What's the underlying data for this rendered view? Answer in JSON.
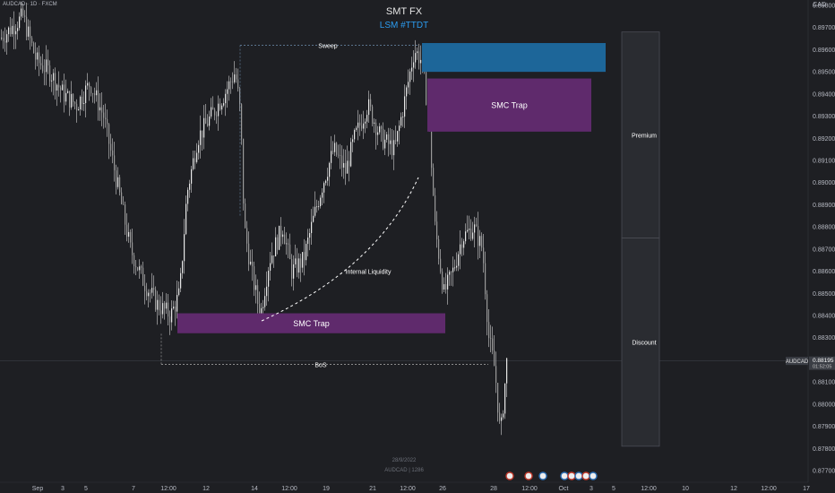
{
  "header": {
    "title": "SMT FX",
    "subtitle": "LSM #TTDT",
    "symbol_tag": "AUDCAD · 1D · FXCM",
    "unit": "CAD"
  },
  "watermark": {
    "date": "28/9/2022",
    "symbol": "AUDCAD | 1286"
  },
  "price_tag": {
    "symbol": "AUDCAD",
    "value": "0.88195",
    "countdown": "01:52:05"
  },
  "chart_data": {
    "type": "candlestick",
    "title": "",
    "ylim": [
      0.8768,
      0.8982
    ],
    "y_ticks": [
      "0.89800",
      "0.89700",
      "0.89600",
      "0.89500",
      "0.89400",
      "0.89300",
      "0.89200",
      "0.89100",
      "0.89000",
      "0.88900",
      "0.88800",
      "0.88700",
      "0.88600",
      "0.88500",
      "0.88400",
      "0.88300",
      "0.88200",
      "0.88100",
      "0.88000",
      "0.87900",
      "0.87800",
      "0.87700"
    ],
    "x_ticks": [
      "Sep",
      "3",
      "5",
      "7",
      "12:00",
      "12",
      "14",
      "12:00",
      "19",
      "21",
      "12:00",
      "26",
      "28",
      "12:00",
      "Oct",
      "3",
      "5",
      "12:00",
      "10",
      "12",
      "12:00",
      "17"
    ],
    "price_path": [
      [
        0,
        0.8965
      ],
      [
        25,
        0.8975
      ],
      [
        40,
        0.8955
      ],
      [
        55,
        0.895
      ],
      [
        70,
        0.894
      ],
      [
        85,
        0.8935
      ],
      [
        100,
        0.8945
      ],
      [
        115,
        0.893
      ],
      [
        130,
        0.89
      ],
      [
        145,
        0.887
      ],
      [
        160,
        0.8855
      ],
      [
        175,
        0.8845
      ],
      [
        190,
        0.884
      ],
      [
        200,
        0.885
      ],
      [
        208,
        0.8895
      ],
      [
        220,
        0.892
      ],
      [
        235,
        0.893
      ],
      [
        250,
        0.894
      ],
      [
        262,
        0.895
      ],
      [
        268,
        0.893
      ],
      [
        272,
        0.888
      ],
      [
        280,
        0.886
      ],
      [
        290,
        0.884
      ],
      [
        300,
        0.8865
      ],
      [
        315,
        0.888
      ],
      [
        325,
        0.886
      ],
      [
        338,
        0.8865
      ],
      [
        350,
        0.8885
      ],
      [
        360,
        0.89
      ],
      [
        372,
        0.8915
      ],
      [
        385,
        0.8905
      ],
      [
        395,
        0.892
      ],
      [
        410,
        0.8935
      ],
      [
        425,
        0.892
      ],
      [
        440,
        0.8915
      ],
      [
        450,
        0.8935
      ],
      [
        462,
        0.896
      ],
      [
        470,
        0.8955
      ],
      [
        478,
        0.893
      ],
      [
        485,
        0.888
      ],
      [
        495,
        0.885
      ],
      [
        505,
        0.886
      ],
      [
        515,
        0.8875
      ],
      [
        528,
        0.888
      ],
      [
        538,
        0.887
      ],
      [
        545,
        0.883
      ],
      [
        552,
        0.8815
      ],
      [
        558,
        0.8785
      ],
      [
        565,
        0.8819
      ]
    ],
    "zones": [
      {
        "label": "",
        "color": "#1d6699",
        "top": 0.8963,
        "bottom": 0.895
      },
      {
        "label": "SMC Trap",
        "color": "#5f2a6c",
        "top": 0.8947,
        "bottom": 0.8923
      },
      {
        "label": "SMC Trap",
        "color": "#5f2a6c",
        "top": 0.8841,
        "bottom": 0.8832
      }
    ],
    "levels": [
      {
        "label": "Sweep",
        "price": 0.8962
      },
      {
        "label": "BoS",
        "price": 0.8818
      }
    ],
    "annotations": [
      {
        "label": "Internal Liquidity",
        "price": 0.886
      }
    ],
    "range": [
      {
        "label": "Premium",
        "top": 0.8968,
        "bottom": 0.8875
      },
      {
        "label": "Discount",
        "top": 0.8875,
        "bottom": 0.8781
      }
    ],
    "current_price": 0.88195
  },
  "colors": {
    "background": "#1e1f23",
    "blue_zone": "#1d6699",
    "purple_zone": "#5f2a6c",
    "candle": "#d8d8d8",
    "accent": "#2c9cf0"
  }
}
